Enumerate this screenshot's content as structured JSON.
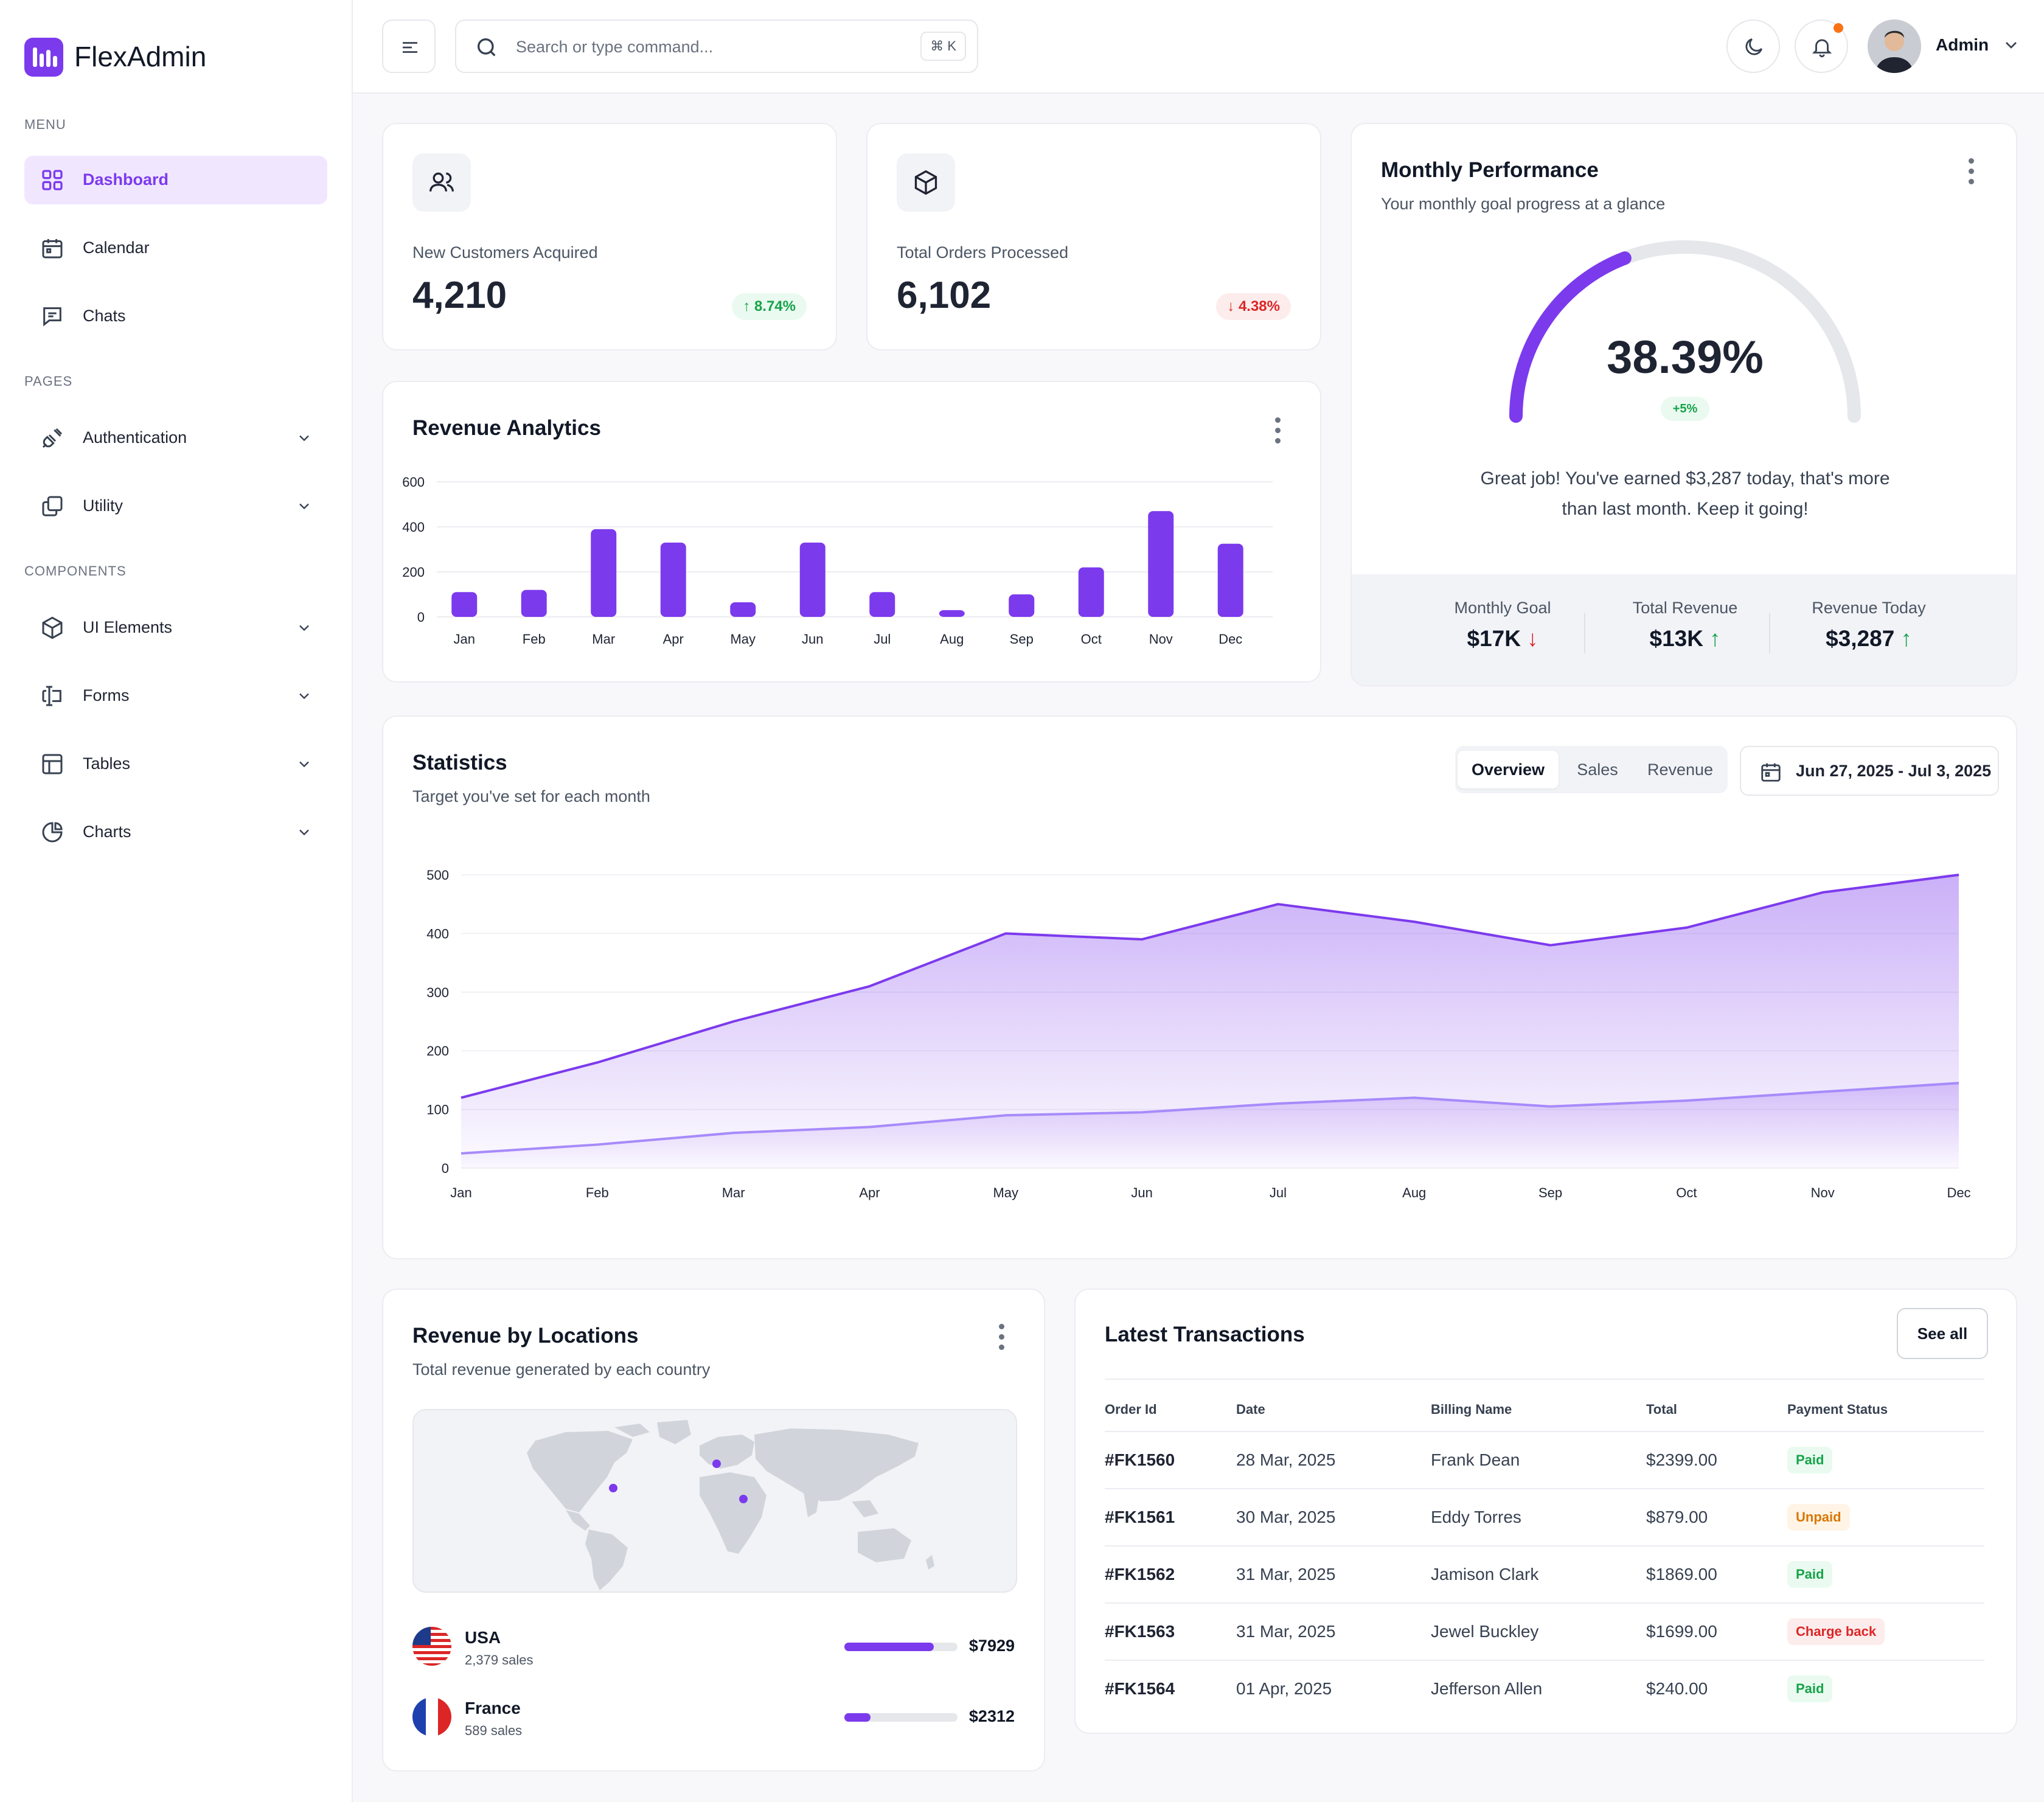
{
  "app": {
    "name": "FlexAdmin",
    "brand_color": "#7c3aed"
  },
  "sidebar": {
    "sections": [
      {
        "label": "MENU",
        "items": [
          {
            "label": "Dashboard",
            "icon": "grid-icon",
            "active": true
          },
          {
            "label": "Calendar",
            "icon": "calendar-icon"
          },
          {
            "label": "Chats",
            "icon": "chat-icon"
          }
        ]
      },
      {
        "label": "PAGES",
        "items": [
          {
            "label": "Authentication",
            "icon": "plug-icon",
            "expandable": true
          },
          {
            "label": "Utility",
            "icon": "copy-icon",
            "expandable": true
          }
        ]
      },
      {
        "label": "COMPONENTS",
        "items": [
          {
            "label": "UI Elements",
            "icon": "box-icon",
            "expandable": true
          },
          {
            "label": "Forms",
            "icon": "form-icon",
            "expandable": true
          },
          {
            "label": "Tables",
            "icon": "table-icon",
            "expandable": true
          },
          {
            "label": "Charts",
            "icon": "pie-chart-icon",
            "expandable": true
          }
        ]
      }
    ]
  },
  "header": {
    "search_placeholder": "Search or type command...",
    "shortcut": "⌘ K",
    "user_name": "Admin",
    "notification_dot_color": "#f97316"
  },
  "kpis": [
    {
      "label": "New Customers Acquired",
      "value": "4,210",
      "change": "8.74%",
      "direction": "up",
      "icon": "users-icon"
    },
    {
      "label": "Total Orders Processed",
      "value": "6,102",
      "change": "4.38%",
      "direction": "down",
      "icon": "box-icon"
    }
  ],
  "revenue_analytics": {
    "title": "Revenue Analytics"
  },
  "monthly_performance": {
    "title": "Monthly Performance",
    "subtitle": "Your monthly goal progress at a glance",
    "percent_text": "38.39%",
    "progress_fraction": 0.3839,
    "delta": "+5%",
    "message_line1": "Great job! You've earned $3,287 today, that's more",
    "message_line2": "than last month. Keep it going!",
    "stats": [
      {
        "label": "Monthly Goal",
        "value": "$17K",
        "direction": "down"
      },
      {
        "label": "Total Revenue",
        "value": "$13K",
        "direction": "up"
      },
      {
        "label": "Revenue Today",
        "value": "$3,287",
        "direction": "up"
      }
    ]
  },
  "statistics": {
    "title": "Statistics",
    "subtitle": "Target you've set for each month",
    "tabs": [
      "Overview",
      "Sales",
      "Revenue"
    ],
    "active_tab": "Overview",
    "date_range": "Jun 27, 2025 - Jul 3, 2025"
  },
  "locations": {
    "title": "Revenue by Locations",
    "subtitle": "Total revenue generated by each country",
    "items": [
      {
        "country": "USA",
        "sales": "2,379 sales",
        "value": "$7929",
        "fraction": 0.79
      },
      {
        "country": "France",
        "sales": "589 sales",
        "value": "$2312",
        "fraction": 0.23
      }
    ]
  },
  "transactions": {
    "title": "Latest Transactions",
    "see_all": "See all",
    "columns": [
      "Order Id",
      "Date",
      "Billing Name",
      "Total",
      "Payment Status"
    ],
    "rows": [
      {
        "id": "#FK1560",
        "date": "28 Mar, 2025",
        "name": "Frank Dean",
        "total": "$2399.00",
        "status": "Paid"
      },
      {
        "id": "#FK1561",
        "date": "30 Mar, 2025",
        "name": "Eddy Torres",
        "total": "$879.00",
        "status": "Unpaid"
      },
      {
        "id": "#FK1562",
        "date": "31 Mar, 2025",
        "name": "Jamison Clark",
        "total": "$1869.00",
        "status": "Paid"
      },
      {
        "id": "#FK1563",
        "date": "31 Mar, 2025",
        "name": "Jewel Buckley",
        "total": "$1699.00",
        "status": "Charge back"
      },
      {
        "id": "#FK1564",
        "date": "01 Apr, 2025",
        "name": "Jefferson Allen",
        "total": "$240.00",
        "status": "Paid"
      }
    ]
  },
  "chart_data": [
    {
      "type": "bar",
      "categories": [
        "Jan",
        "Feb",
        "Mar",
        "Apr",
        "May",
        "Jun",
        "Jul",
        "Aug",
        "Sep",
        "Oct",
        "Nov",
        "Dec"
      ],
      "values": [
        110,
        120,
        390,
        330,
        65,
        330,
        110,
        30,
        100,
        220,
        470,
        325
      ],
      "ylim": [
        0,
        600
      ],
      "yticks": [
        0,
        200,
        400,
        600
      ],
      "grid": true,
      "color": "#7c3aed"
    },
    {
      "type": "area",
      "categories": [
        "Jan",
        "Feb",
        "Mar",
        "Apr",
        "May",
        "Jun",
        "Jul",
        "Aug",
        "Sep",
        "Oct",
        "Nov",
        "Dec"
      ],
      "series": [
        {
          "values": [
            120,
            180,
            250,
            310,
            400,
            390,
            450,
            420,
            380,
            410,
            470,
            500
          ],
          "color": "#7c3aed"
        },
        {
          "values": [
            25,
            40,
            60,
            70,
            90,
            95,
            110,
            120,
            105,
            115,
            130,
            145
          ],
          "color": "#a78bfa"
        }
      ],
      "ylim": [
        0,
        500
      ],
      "yticks": [
        0,
        100,
        200,
        300,
        400,
        500
      ],
      "grid": true
    }
  ]
}
